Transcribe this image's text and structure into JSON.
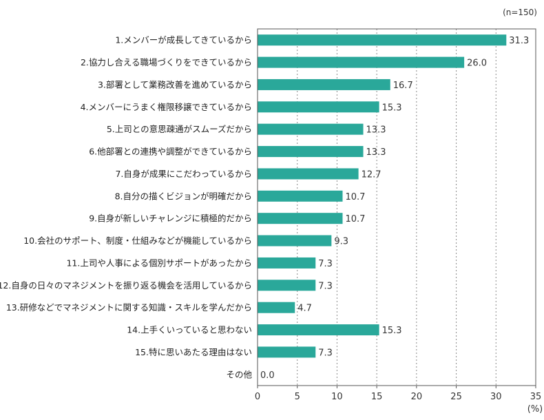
{
  "chart_data": {
    "type": "bar",
    "orientation": "horizontal",
    "note": "(n=150)",
    "unit": "(%)",
    "xlim": [
      0,
      35
    ],
    "xticks": [
      0,
      5,
      10,
      15,
      20,
      25,
      30,
      35
    ],
    "grid": "vertical dotted",
    "bar_color": "#2aa89a",
    "categories": [
      "1.メンバーが成長してきているから",
      "2.協力し合える職場づくりをできているから",
      "3.部署として業務改善を進めているから",
      "4.メンバーにうまく権限移譲できているから",
      "5.上司との意思疎通がスムーズだから",
      "6.他部署との連携や調整ができているから",
      "7.自身が成果にこだわっているから",
      "8.自分の描くビジョンが明確だから",
      "9.自身が新しいチャレンジに積極的だから",
      "10.会社のサポート、制度・仕組みなどが機能しているから",
      "11.上司や人事による個別サポートがあったから",
      "12.自身の日々のマネジメントを振り返る機会を活用しているから",
      "13.研修などでマネジメントに関する知識・スキルを学んだから",
      "14.上手くいっていると思わない",
      "15.特に思いあたる理由はない",
      "その他"
    ],
    "values": [
      31.3,
      26.0,
      16.7,
      15.3,
      13.3,
      13.3,
      12.7,
      10.7,
      10.7,
      9.3,
      7.3,
      7.3,
      4.7,
      15.3,
      7.3,
      0.0
    ],
    "value_labels": [
      "31.3",
      "26.0",
      "16.7",
      "15.3",
      "13.3",
      "13.3",
      "12.7",
      "10.7",
      "10.7",
      "9.3",
      "7.3",
      "7.3",
      "4.7",
      "15.3",
      "7.3",
      "0.0"
    ]
  }
}
